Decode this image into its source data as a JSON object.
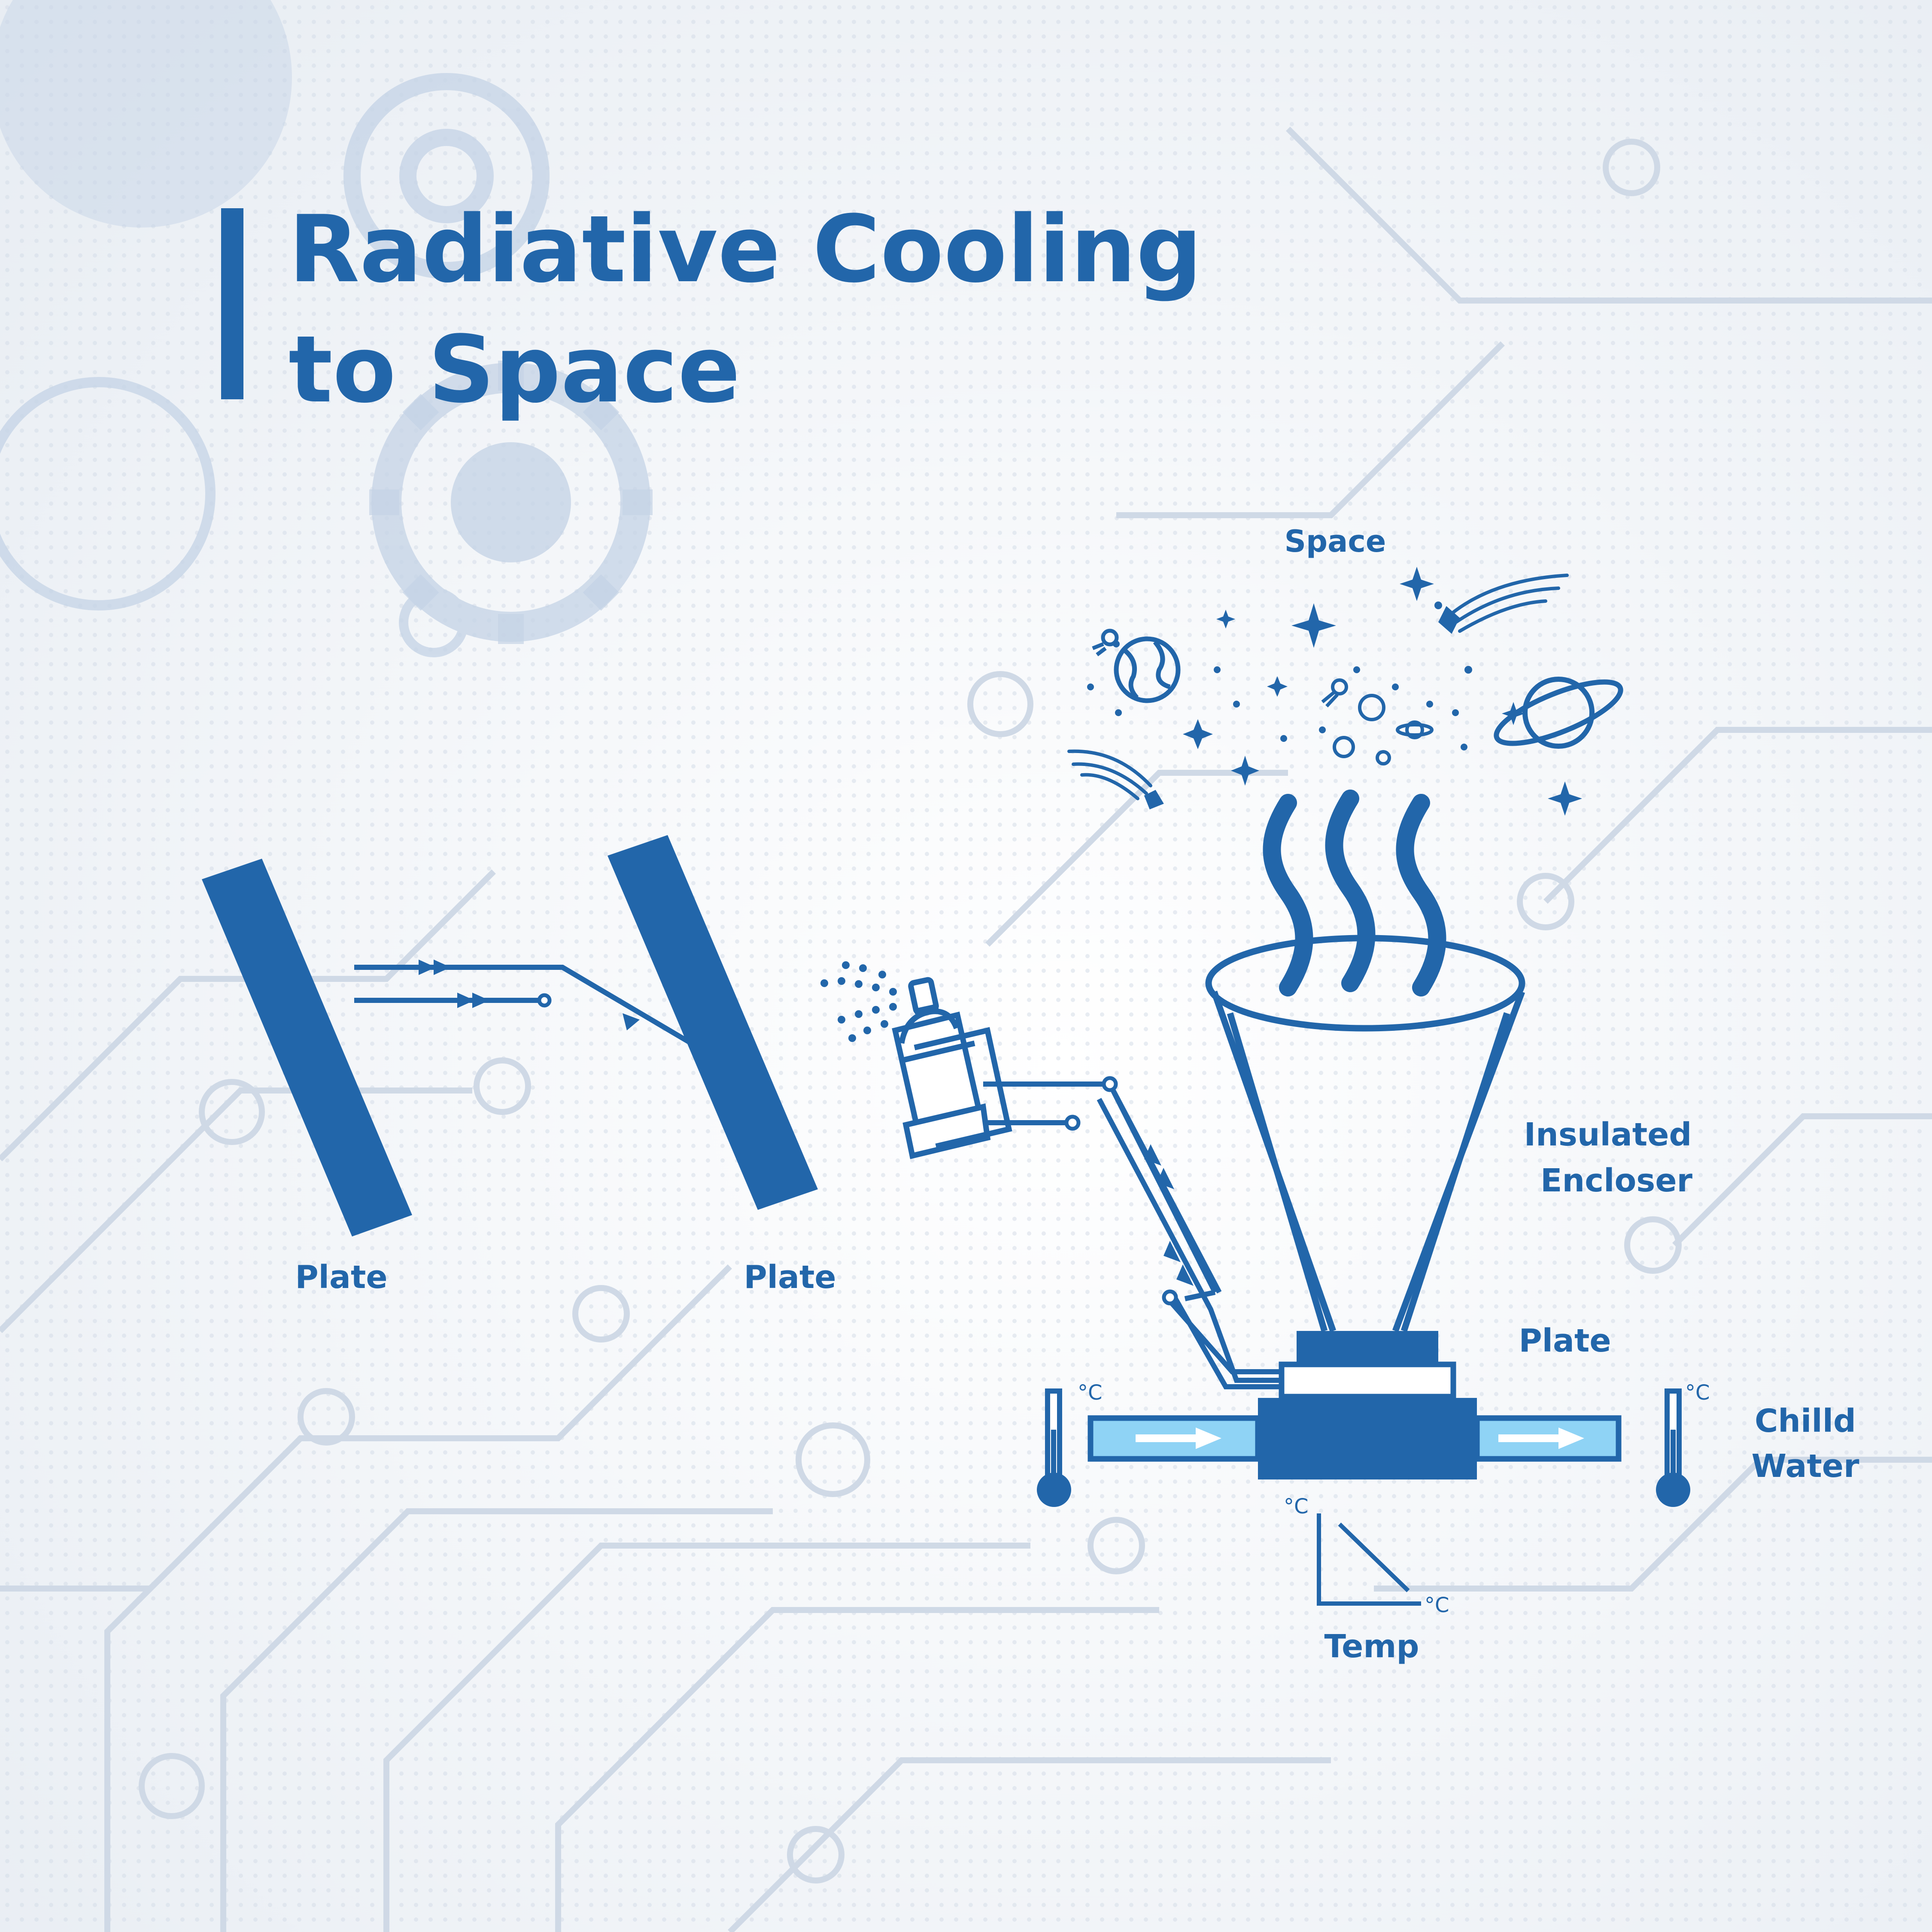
{
  "title": {
    "line1": "Radiative Cooling",
    "line2": "to Space"
  },
  "labels": {
    "plate_left": "Plate",
    "plate_middle": "Plate",
    "plate_bottom": "Plate",
    "space": "Space",
    "enclosure_line1": "Insulated",
    "enclosure_line2": "Encloser",
    "water_line1": "Chilld",
    "water_line2": "Water",
    "temp": "Temp",
    "celsius": "°C"
  },
  "colors": {
    "primary": "#2266aa",
    "water": "#8fd3f5",
    "background": "#f1f3f7",
    "background_pattern": "#c9d6e6"
  }
}
